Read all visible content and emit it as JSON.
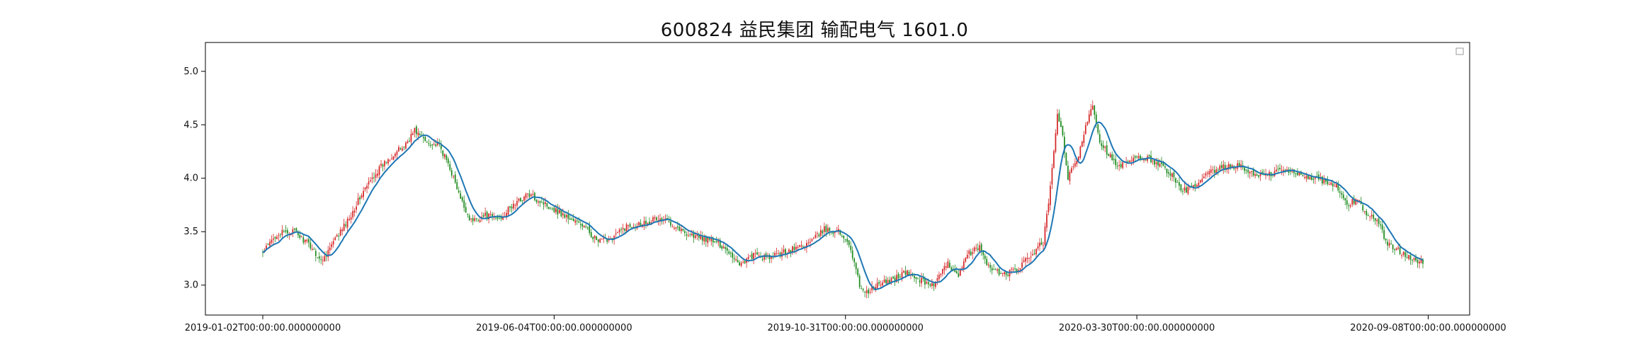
{
  "chart_data": {
    "type": "candlestick",
    "title": "600824 益民集团 输配电气 1601.0",
    "xlabel": "",
    "ylabel": "",
    "ylim": [
      2.72,
      5.27
    ],
    "x_ticks": [
      "2019-01-02T00:00:00.000000000",
      "2019-06-04T00:00:00.000000000",
      "2019-10-31T00:00:00.000000000",
      "2020-03-30T00:00:00.000000000",
      "2020-09-08T00:00:00.000000000",
      ""
    ],
    "y_ticks": [
      "3.0",
      "3.5",
      "4.0",
      "4.5",
      "5.0"
    ],
    "grid": false,
    "legend": "top-right (empty)",
    "colors": {
      "up": "#d62728",
      "down": "#1f8b1f",
      "ma_line": "#1f77b4"
    },
    "closing_price_keypoints": [
      {
        "bar": 0,
        "close": 3.3
      },
      {
        "bar": 8,
        "close": 3.48
      },
      {
        "bar": 18,
        "close": 3.5
      },
      {
        "bar": 28,
        "close": 3.35
      },
      {
        "bar": 33,
        "close": 3.22
      },
      {
        "bar": 40,
        "close": 3.4
      },
      {
        "bar": 48,
        "close": 3.6
      },
      {
        "bar": 56,
        "close": 3.85
      },
      {
        "bar": 64,
        "close": 4.05
      },
      {
        "bar": 72,
        "close": 4.2
      },
      {
        "bar": 80,
        "close": 4.3
      },
      {
        "bar": 86,
        "close": 4.45
      },
      {
        "bar": 92,
        "close": 4.35
      },
      {
        "bar": 100,
        "close": 4.3
      },
      {
        "bar": 106,
        "close": 4.1
      },
      {
        "bar": 112,
        "close": 3.8
      },
      {
        "bar": 118,
        "close": 3.6
      },
      {
        "bar": 126,
        "close": 3.65
      },
      {
        "bar": 134,
        "close": 3.62
      },
      {
        "bar": 142,
        "close": 3.75
      },
      {
        "bar": 150,
        "close": 3.85
      },
      {
        "bar": 158,
        "close": 3.78
      },
      {
        "bar": 166,
        "close": 3.7
      },
      {
        "bar": 174,
        "close": 3.62
      },
      {
        "bar": 182,
        "close": 3.55
      },
      {
        "bar": 190,
        "close": 3.4
      },
      {
        "bar": 198,
        "close": 3.45
      },
      {
        "bar": 206,
        "close": 3.55
      },
      {
        "bar": 214,
        "close": 3.58
      },
      {
        "bar": 222,
        "close": 3.62
      },
      {
        "bar": 230,
        "close": 3.6
      },
      {
        "bar": 238,
        "close": 3.5
      },
      {
        "bar": 246,
        "close": 3.45
      },
      {
        "bar": 254,
        "close": 3.42
      },
      {
        "bar": 262,
        "close": 3.35
      },
      {
        "bar": 270,
        "close": 3.2
      },
      {
        "bar": 278,
        "close": 3.28
      },
      {
        "bar": 286,
        "close": 3.25
      },
      {
        "bar": 294,
        "close": 3.3
      },
      {
        "bar": 302,
        "close": 3.35
      },
      {
        "bar": 310,
        "close": 3.4
      },
      {
        "bar": 318,
        "close": 3.52
      },
      {
        "bar": 326,
        "close": 3.5
      },
      {
        "bar": 332,
        "close": 3.4
      },
      {
        "bar": 338,
        "close": 3.0
      },
      {
        "bar": 342,
        "close": 2.93
      },
      {
        "bar": 348,
        "close": 3.0
      },
      {
        "bar": 356,
        "close": 3.05
      },
      {
        "bar": 364,
        "close": 3.12
      },
      {
        "bar": 372,
        "close": 3.05
      },
      {
        "bar": 380,
        "close": 3.0
      },
      {
        "bar": 388,
        "close": 3.2
      },
      {
        "bar": 394,
        "close": 3.1
      },
      {
        "bar": 400,
        "close": 3.3
      },
      {
        "bar": 406,
        "close": 3.35
      },
      {
        "bar": 412,
        "close": 3.15
      },
      {
        "bar": 420,
        "close": 3.1
      },
      {
        "bar": 428,
        "close": 3.15
      },
      {
        "bar": 436,
        "close": 3.3
      },
      {
        "bar": 442,
        "close": 3.4
      },
      {
        "bar": 446,
        "close": 3.9
      },
      {
        "bar": 450,
        "close": 4.6
      },
      {
        "bar": 452,
        "close": 4.5
      },
      {
        "bar": 456,
        "close": 4.0
      },
      {
        "bar": 462,
        "close": 4.2
      },
      {
        "bar": 466,
        "close": 4.5
      },
      {
        "bar": 470,
        "close": 4.7
      },
      {
        "bar": 474,
        "close": 4.35
      },
      {
        "bar": 478,
        "close": 4.25
      },
      {
        "bar": 484,
        "close": 4.1
      },
      {
        "bar": 490,
        "close": 4.15
      },
      {
        "bar": 498,
        "close": 4.2
      },
      {
        "bar": 506,
        "close": 4.15
      },
      {
        "bar": 514,
        "close": 4.05
      },
      {
        "bar": 520,
        "close": 3.88
      },
      {
        "bar": 528,
        "close": 3.92
      },
      {
        "bar": 536,
        "close": 4.05
      },
      {
        "bar": 544,
        "close": 4.1
      },
      {
        "bar": 552,
        "close": 4.12
      },
      {
        "bar": 560,
        "close": 4.05
      },
      {
        "bar": 568,
        "close": 4.02
      },
      {
        "bar": 576,
        "close": 4.08
      },
      {
        "bar": 584,
        "close": 4.05
      },
      {
        "bar": 592,
        "close": 4.02
      },
      {
        "bar": 600,
        "close": 3.98
      },
      {
        "bar": 608,
        "close": 3.92
      },
      {
        "bar": 614,
        "close": 3.75
      },
      {
        "bar": 620,
        "close": 3.8
      },
      {
        "bar": 626,
        "close": 3.65
      },
      {
        "bar": 632,
        "close": 3.6
      },
      {
        "bar": 636,
        "close": 3.4
      },
      {
        "bar": 640,
        "close": 3.35
      },
      {
        "bar": 646,
        "close": 3.3
      },
      {
        "bar": 652,
        "close": 3.25
      },
      {
        "bar": 657,
        "close": 3.2
      }
    ]
  }
}
